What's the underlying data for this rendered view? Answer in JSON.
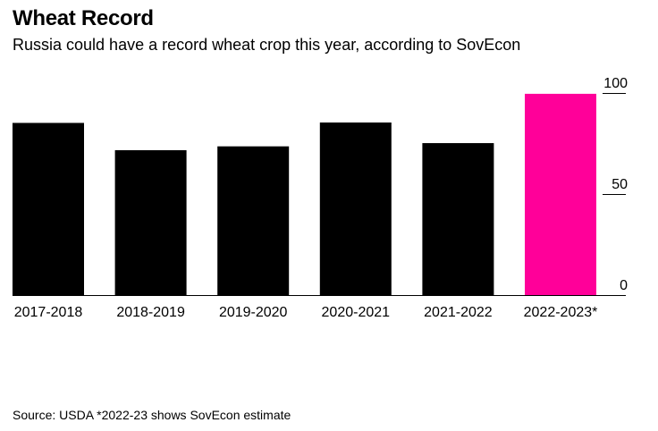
{
  "title": "Wheat Record",
  "subtitle": "Russia could have a record wheat crop this year, according to SovEcon",
  "source": "Source: USDA *2022-23 shows SovEcon estimate",
  "chart_data": {
    "type": "bar",
    "categories": [
      "2017-2018",
      "2018-2019",
      "2019-2020",
      "2020-2021",
      "2021-2022",
      "2022-2023*"
    ],
    "values": [
      85.2,
      71.7,
      73.6,
      85.4,
      75.2,
      99.6
    ],
    "colors": [
      "#000000",
      "#000000",
      "#000000",
      "#000000",
      "#000000",
      "#ff0099"
    ],
    "yticks": [
      0,
      50,
      100
    ],
    "ylim": [
      0,
      100
    ],
    "title": "Wheat Record",
    "xlabel": "",
    "ylabel": "",
    "y_axis_side": "right",
    "grid": false
  }
}
